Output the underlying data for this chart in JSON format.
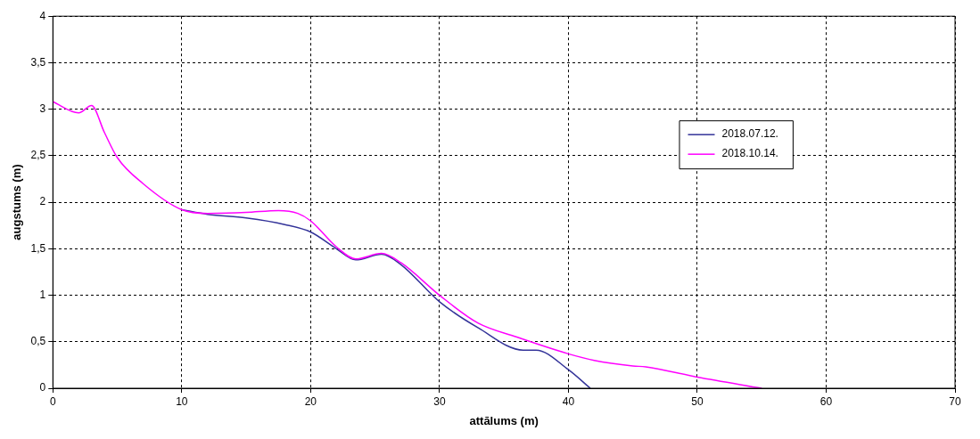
{
  "chart_data": {
    "type": "line",
    "xlabel": "attālums (m)",
    "ylabel": "augstums (m)",
    "xlim": [
      0,
      70
    ],
    "xticks": [
      0,
      10,
      20,
      30,
      40,
      50,
      60,
      70
    ],
    "ylim": [
      0,
      4
    ],
    "yticks": [
      0,
      {
        "value": 0.5,
        "label": "0,5"
      },
      1,
      {
        "value": 1.5,
        "label": "1,5"
      },
      2,
      {
        "value": 2.5,
        "label": "2,5"
      },
      3,
      {
        "value": 3.5,
        "label": "3,5"
      },
      4
    ],
    "grid": true,
    "legend": "right",
    "marker": "none",
    "line_style": "solid",
    "series": [
      {
        "name": "2018.07.12.",
        "color": "#333399",
        "x": [
          10,
          12,
          15,
          18,
          20,
          22,
          23.5,
          25.5,
          27,
          30,
          33,
          36.5,
          37.5,
          40,
          41.7
        ],
        "values": [
          1.92,
          1.87,
          1.83,
          1.76,
          1.68,
          1.5,
          1.38,
          1.44,
          1.33,
          0.93,
          0.65,
          0.41,
          0.41,
          0.2,
          0
        ]
      },
      {
        "name": "2018.10.14.",
        "color": "#ff00ff",
        "x": [
          0,
          2,
          3,
          4,
          5,
          7,
          10,
          12,
          15,
          17.5,
          19,
          20,
          22,
          23.5,
          25.5,
          27,
          30,
          33,
          36,
          40,
          42,
          45,
          46,
          50,
          55
        ],
        "values": [
          3.08,
          2.96,
          3.04,
          2.75,
          2.48,
          2.2,
          1.92,
          1.88,
          1.89,
          1.91,
          1.88,
          1.8,
          1.52,
          1.39,
          1.45,
          1.35,
          1.0,
          0.7,
          0.55,
          0.37,
          0.3,
          0.24,
          0.23,
          0.12,
          0
        ]
      }
    ]
  }
}
